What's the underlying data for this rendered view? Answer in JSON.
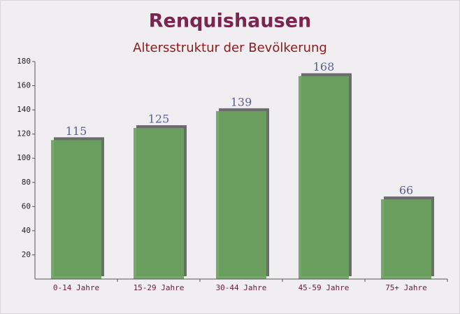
{
  "chart_data": {
    "type": "bar",
    "title": "Renquishausen",
    "subtitle": "Altersstruktur der Bevölkerung",
    "categories": [
      "0-14 Jahre",
      "15-29 Jahre",
      "30-44 Jahre",
      "45-59 Jahre",
      "75+ Jahre"
    ],
    "values": [
      115,
      125,
      139,
      168,
      66
    ],
    "color": "#6aa35e",
    "ylim": [
      0,
      180
    ],
    "yticks": [
      20,
      40,
      60,
      80,
      100,
      120,
      140,
      160,
      180
    ],
    "grid": false
  }
}
